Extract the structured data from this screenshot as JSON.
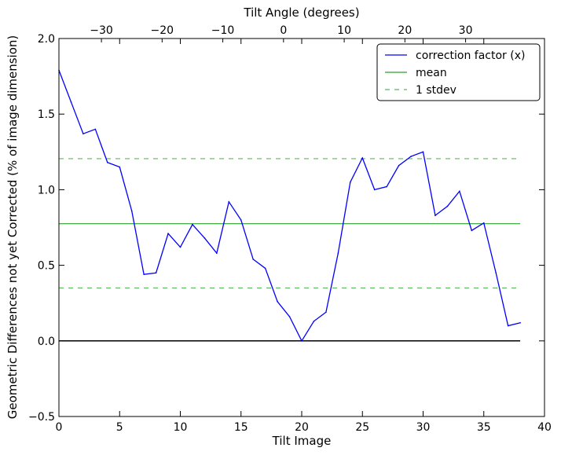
{
  "chart_data": {
    "type": "line",
    "title": "",
    "xlabel": "Tilt Image",
    "ylabel": "Geometric Differences not yet Corrected (% of image dimension)",
    "x2label": "Tilt Angle (degrees)",
    "xlim": [
      0,
      40
    ],
    "ylim": [
      -0.5,
      2.0
    ],
    "x2lim": [
      -37,
      43
    ],
    "xticks": [
      0,
      5,
      10,
      15,
      20,
      25,
      30,
      35,
      40
    ],
    "yticks": [
      -0.5,
      0.0,
      0.5,
      1.0,
      1.5,
      2.0
    ],
    "x2ticks": [
      -30,
      -20,
      -10,
      0,
      10,
      20,
      30
    ],
    "xtick_labels": [
      "0",
      "5",
      "10",
      "15",
      "20",
      "25",
      "30",
      "35",
      "40"
    ],
    "ytick_labels": [
      "−0.5",
      "0.0",
      "0.5",
      "1.0",
      "1.5",
      "2.0"
    ],
    "x2tick_labels": [
      "−30",
      "−20",
      "−10",
      "0",
      "10",
      "20",
      "30"
    ],
    "grid": false,
    "legend_position": "top-right",
    "series": [
      {
        "name": "correction factor (x)",
        "color": "#0000ff",
        "style": "solid",
        "x": [
          0,
          1,
          2,
          3,
          4,
          5,
          6,
          7,
          8,
          9,
          10,
          11,
          12,
          13,
          14,
          15,
          16,
          17,
          18,
          19,
          20,
          21,
          22,
          23,
          24,
          25,
          26,
          27,
          28,
          29,
          30,
          31,
          32,
          33,
          34,
          35,
          36,
          37,
          38
        ],
        "y": [
          1.79,
          1.58,
          1.37,
          1.4,
          1.18,
          1.15,
          0.86,
          0.44,
          0.45,
          0.71,
          0.62,
          0.77,
          0.68,
          0.58,
          0.92,
          0.8,
          0.54,
          0.48,
          0.26,
          0.16,
          0.0,
          0.13,
          0.19,
          0.58,
          1.05,
          1.21,
          1.0,
          1.02,
          1.16,
          1.22,
          1.25,
          0.83,
          0.89,
          0.99,
          0.73,
          0.78,
          0.45,
          0.1,
          0.12
        ]
      },
      {
        "name": "mean",
        "color": "#2ca02c",
        "style": "solid",
        "x": [
          0,
          38
        ],
        "y": [
          0.775,
          0.775
        ]
      },
      {
        "name": "1 stdev",
        "color": "#5cb85c",
        "style": "dashed",
        "x": [
          0,
          38
        ],
        "y": [
          1.205,
          1.205
        ],
        "y2": [
          0.35,
          0.35
        ]
      }
    ],
    "baseline": {
      "x": [
        0,
        38
      ],
      "y": 0.0,
      "color": "#000000"
    }
  }
}
